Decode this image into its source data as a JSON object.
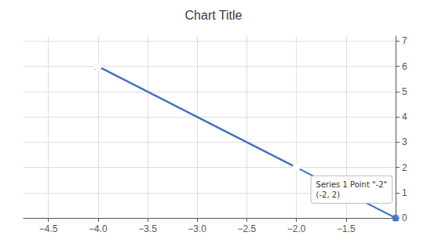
{
  "chart_data": {
    "type": "line",
    "title": "Chart Title",
    "xlim": [
      -4.75,
      -1.0
    ],
    "ylim": [
      0,
      7.2
    ],
    "xticks": [
      {
        "value": -4.5,
        "label": "−4.5"
      },
      {
        "value": -4.0,
        "label": "−4.0"
      },
      {
        "value": -3.5,
        "label": "−3.5"
      },
      {
        "value": -3.0,
        "label": "−3.0"
      },
      {
        "value": -2.5,
        "label": "−2.5"
      },
      {
        "value": -2.0,
        "label": "−2.0"
      },
      {
        "value": -1.5,
        "label": "−1.5"
      }
    ],
    "yticks": [
      0,
      1,
      2,
      3,
      4,
      5,
      6,
      7
    ],
    "grid": true,
    "series": [
      {
        "type": "line",
        "x": [
          -4.0,
          -1.0
        ],
        "values": [
          6.0,
          0.0
        ],
        "color": "#4472C4",
        "marker": "triangle"
      },
      {
        "type": "line",
        "x": [
          -4.0,
          -2.0
        ],
        "values": [
          6.0,
          2.0
        ],
        "color": "#4472C4",
        "marker": "triangle"
      },
      {
        "type": "line",
        "x": [
          -4.0,
          -2.0
        ],
        "values": [
          6.0,
          2.0
        ],
        "color": "#4472C4",
        "marker": "open circle"
      },
      {
        "type": "scatter",
        "x": [
          -1.0
        ],
        "values": [
          0.0
        ],
        "color": "#4472C4",
        "marker": "circle"
      }
    ],
    "annotations": [
      {
        "text": "Series 1 Point \"-2\"\n(-2, 2)",
        "x": -1.85,
        "y": 0.6
      }
    ]
  }
}
